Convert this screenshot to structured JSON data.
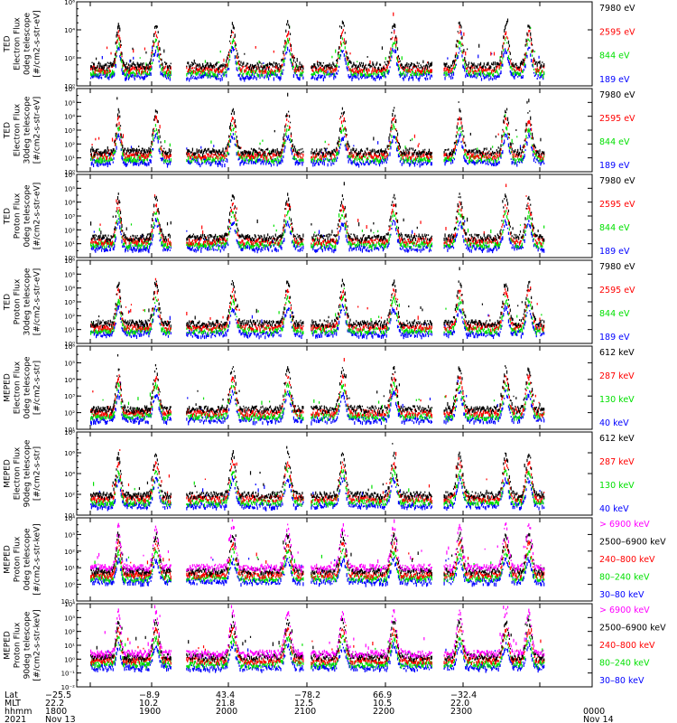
{
  "colors": {
    "black": "#000000",
    "red": "#ff0000",
    "green": "#00e000",
    "blue": "#0000ff",
    "magenta": "#ff00ff"
  },
  "bottom_axis": {
    "row_labels": [
      "Lat",
      "MLT",
      "hhmm",
      "2021"
    ],
    "ticks": [
      {
        "lat": "−25.5",
        "mlt": "22.2",
        "hhmm": "1800",
        "date": "Nov 13"
      },
      {
        "lat": "−8.9",
        "mlt": "10.2",
        "hhmm": "1900",
        "date": ""
      },
      {
        "lat": "43.4",
        "mlt": "21.8",
        "hhmm": "2000",
        "date": ""
      },
      {
        "lat": "−78.2",
        "mlt": "12.5",
        "hhmm": "2100",
        "date": ""
      },
      {
        "lat": "66.9",
        "mlt": "10.5",
        "hhmm": "2200",
        "date": ""
      },
      {
        "lat": "−32.4",
        "mlt": "22.0",
        "hhmm": "2300",
        "date": ""
      },
      {
        "lat": "",
        "mlt": "",
        "hhmm": "0000",
        "date": "Nov 14"
      }
    ]
  },
  "chart_data": [
    {
      "type": "scatter",
      "ylabel": [
        "TED",
        "Electron Flux",
        "0deg telescope",
        "[#/cm2-s-str-eV]"
      ],
      "y_scale": "log",
      "ylim_exp": [
        0,
        6
      ],
      "y_tick_labels": [
        "10⁰",
        "10²",
        "10⁴",
        "10⁶"
      ],
      "x_range": [
        "1800",
        "0000"
      ],
      "legend": [
        {
          "label": "7980 eV",
          "color": "#000000"
        },
        {
          "label": "2595 eV",
          "color": "#ff0000"
        },
        {
          "label": "844 eV",
          "color": "#00e000"
        },
        {
          "label": "189 eV",
          "color": "#0000ff"
        }
      ]
    },
    {
      "type": "scatter",
      "ylabel": [
        "TED",
        "Electron Flux",
        "30deg telescope",
        "[#/cm2-s-str-eV]"
      ],
      "y_scale": "log",
      "ylim_exp": [
        0,
        6
      ],
      "y_tick_labels": [
        "10⁰",
        "10¹",
        "10²",
        "10³",
        "10⁴",
        "10⁵",
        "10⁶"
      ],
      "x_range": [
        "1800",
        "0000"
      ],
      "legend": [
        {
          "label": "7980 eV",
          "color": "#000000"
        },
        {
          "label": "2595 eV",
          "color": "#ff0000"
        },
        {
          "label": "844 eV",
          "color": "#00e000"
        },
        {
          "label": "189 eV",
          "color": "#0000ff"
        }
      ]
    },
    {
      "type": "scatter",
      "ylabel": [
        "TED",
        "Proton Flux",
        "0deg telescope",
        "[#/cm2-s-str-eV]"
      ],
      "y_scale": "log",
      "ylim_exp": [
        0,
        6
      ],
      "y_tick_labels": [
        "10⁰",
        "10¹",
        "10²",
        "10³",
        "10⁴",
        "10⁵",
        "10⁶"
      ],
      "x_range": [
        "1800",
        "0000"
      ],
      "legend": [
        {
          "label": "7980 eV",
          "color": "#000000"
        },
        {
          "label": "2595 eV",
          "color": "#ff0000"
        },
        {
          "label": "844 eV",
          "color": "#00e000"
        },
        {
          "label": "189 eV",
          "color": "#0000ff"
        }
      ]
    },
    {
      "type": "scatter",
      "ylabel": [
        "TED",
        "Proton Flux",
        "30deg telescope",
        "[#/cm2-s-str-eV]"
      ],
      "y_scale": "log",
      "ylim_exp": [
        0,
        6
      ],
      "y_tick_labels": [
        "10⁰",
        "10¹",
        "10²",
        "10³",
        "10⁴",
        "10⁵",
        "10⁶"
      ],
      "x_range": [
        "1800",
        "0000"
      ],
      "legend": [
        {
          "label": "7980 eV",
          "color": "#000000"
        },
        {
          "label": "2595 eV",
          "color": "#ff0000"
        },
        {
          "label": "844 eV",
          "color": "#00e000"
        },
        {
          "label": "189 eV",
          "color": "#0000ff"
        }
      ]
    },
    {
      "type": "scatter",
      "ylabel": [
        "MEPED",
        "Electron Flux",
        "0deg telescope",
        "[#/cm2-s-str]"
      ],
      "y_scale": "log",
      "ylim_exp": [
        1,
        6
      ],
      "y_tick_labels": [
        "10¹",
        "10²",
        "10³",
        "10⁴",
        "10⁵",
        "10⁶"
      ],
      "x_range": [
        "1800",
        "0000"
      ],
      "legend": [
        {
          "label": "612 keV",
          "color": "#000000"
        },
        {
          "label": "287 keV",
          "color": "#ff0000"
        },
        {
          "label": "130 keV",
          "color": "#00e000"
        },
        {
          "label": "40 keV",
          "color": "#0000ff"
        }
      ]
    },
    {
      "type": "scatter",
      "ylabel": [
        "MEPED",
        "Electron Flux",
        "90deg telescope",
        "[#/cm2-s-str]"
      ],
      "y_scale": "log",
      "ylim_exp": [
        1,
        8
      ],
      "y_tick_labels": [
        "10¹",
        "10²",
        "10⁴",
        "10⁶",
        "10⁸"
      ],
      "x_range": [
        "1800",
        "0000"
      ],
      "legend": [
        {
          "label": "612 keV",
          "color": "#000000"
        },
        {
          "label": "287 keV",
          "color": "#ff0000"
        },
        {
          "label": "130 keV",
          "color": "#00e000"
        },
        {
          "label": "40 keV",
          "color": "#0000ff"
        }
      ]
    },
    {
      "type": "scatter",
      "ylabel": [
        "MEPED",
        "Proton Flux",
        "0deg telescope",
        "[#/cm2-s-str-keV]"
      ],
      "y_scale": "log",
      "ylim_exp": [
        -2,
        4
      ],
      "y_tick_labels": [
        "10⁻¹",
        "10⁰",
        "10¹",
        "10²",
        "10³",
        "10⁴"
      ],
      "x_range": [
        "1800",
        "0000"
      ],
      "legend": [
        {
          "label": "> 6900 keV",
          "color": "#ff00ff"
        },
        {
          "label": "2500–6900 keV",
          "color": "#000000"
        },
        {
          "label": "240–800 keV",
          "color": "#ff0000"
        },
        {
          "label": "80–240 keV",
          "color": "#00e000"
        },
        {
          "label": "30–80 keV",
          "color": "#0000ff"
        }
      ]
    },
    {
      "type": "scatter",
      "ylabel": [
        "MEPED",
        "Proton Flux",
        "90deg telescope",
        "[#/cm2-s-str-keV]"
      ],
      "y_scale": "log",
      "ylim_exp": [
        -2,
        4
      ],
      "y_tick_labels": [
        "10⁻²",
        "10⁻¹",
        "10⁰",
        "10¹",
        "10²",
        "10³",
        "10⁴"
      ],
      "x_range": [
        "1800",
        "0000"
      ],
      "legend": [
        {
          "label": "> 6900 keV",
          "color": "#ff00ff"
        },
        {
          "label": "2500–6900 keV",
          "color": "#000000"
        },
        {
          "label": "240–800 keV",
          "color": "#ff0000"
        },
        {
          "label": "80–240 keV",
          "color": "#00e000"
        },
        {
          "label": "30–80 keV",
          "color": "#0000ff"
        }
      ]
    }
  ]
}
